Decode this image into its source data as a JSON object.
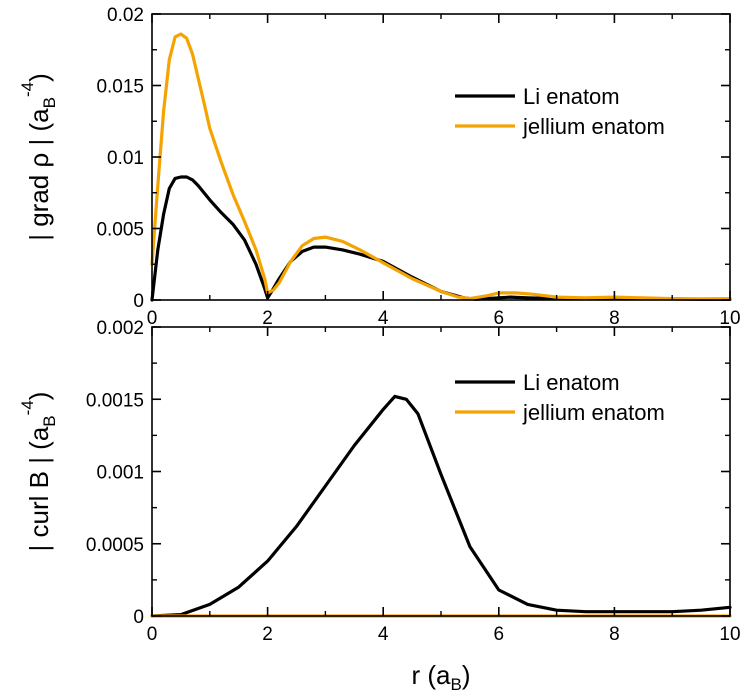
{
  "colors": {
    "li": "#000000",
    "jellium": "#f5a300",
    "axis": "#000000"
  },
  "x_label": {
    "prefix": "r (a",
    "sub": "B",
    "suffix": ")"
  },
  "chart_data": [
    {
      "type": "line",
      "ylabel": {
        "prefix": "| grad ρ | (a",
        "sub": "B",
        "sup": "-4",
        "suffix": ")"
      },
      "xlim": [
        0,
        10
      ],
      "ylim": [
        0,
        0.02
      ],
      "xticks": [
        0,
        2,
        4,
        6,
        8,
        10
      ],
      "xtick_labels": [
        "0",
        "2",
        "4",
        "6",
        "8",
        "10"
      ],
      "yticks": [
        0,
        0.005,
        0.01,
        0.015,
        0.02
      ],
      "ytick_labels": [
        "0",
        "0.005",
        "0.01",
        "0.015",
        "0.02"
      ],
      "legend": {
        "position": "top-right"
      },
      "series": [
        {
          "name": "Li enatom",
          "color_key": "li",
          "x": [
            0,
            0.1,
            0.2,
            0.3,
            0.4,
            0.5,
            0.6,
            0.7,
            0.8,
            0.9,
            1.0,
            1.2,
            1.4,
            1.6,
            1.8,
            1.95,
            2.0,
            2.1,
            2.2,
            2.4,
            2.6,
            2.8,
            3.0,
            3.3,
            3.6,
            4.0,
            4.5,
            5.0,
            5.4,
            5.6,
            5.8,
            6.0,
            6.2,
            6.5,
            7.0,
            7.5,
            8.0,
            8.5,
            9.0,
            9.5,
            10.0
          ],
          "y": [
            0.0,
            0.0035,
            0.006,
            0.0078,
            0.0085,
            0.0086,
            0.0086,
            0.0084,
            0.008,
            0.0075,
            0.007,
            0.0061,
            0.0053,
            0.0042,
            0.0025,
            0.0008,
            0.00015,
            0.0008,
            0.0015,
            0.0027,
            0.0034,
            0.0037,
            0.0037,
            0.0035,
            0.0032,
            0.0027,
            0.0016,
            0.0006,
            0.00015,
            5e-05,
            0.0001,
            0.00015,
            0.0002,
            0.00015,
            0.0001,
            0.0001,
            0.00015,
            0.0001,
            8e-05,
            5e-05,
            5e-05
          ]
        },
        {
          "name": "jellium enatom",
          "color_key": "jellium",
          "x": [
            0,
            0.1,
            0.2,
            0.3,
            0.4,
            0.5,
            0.6,
            0.7,
            0.8,
            0.9,
            1.0,
            1.2,
            1.4,
            1.6,
            1.8,
            1.95,
            2.0,
            2.1,
            2.2,
            2.4,
            2.6,
            2.8,
            3.0,
            3.3,
            3.6,
            4.0,
            4.5,
            5.0,
            5.3,
            5.5,
            5.8,
            6.0,
            6.3,
            6.6,
            7.0,
            7.5,
            8.0,
            8.5,
            9.0,
            9.5,
            10.0
          ],
          "y": [
            0.0025,
            0.008,
            0.0132,
            0.0168,
            0.0184,
            0.0186,
            0.0183,
            0.0172,
            0.0155,
            0.0138,
            0.012,
            0.0096,
            0.0074,
            0.0055,
            0.0035,
            0.0015,
            0.0005,
            0.0007,
            0.0012,
            0.0027,
            0.0038,
            0.0043,
            0.0044,
            0.0041,
            0.0035,
            0.0026,
            0.0015,
            0.0006,
            0.0002,
            0.0001,
            0.0003,
            0.0005,
            0.0005,
            0.0004,
            0.0002,
            0.00015,
            0.0002,
            0.00015,
            0.0001,
            8e-05,
            0.0001
          ]
        }
      ]
    },
    {
      "type": "line",
      "ylabel": {
        "prefix": "| curl B | (a",
        "sub": "B",
        "sup": "-4",
        "suffix": ")"
      },
      "xlim": [
        0,
        10
      ],
      "ylim": [
        0,
        0.002
      ],
      "xticks": [
        0,
        2,
        4,
        6,
        8,
        10
      ],
      "xtick_labels": [
        "0",
        "2",
        "4",
        "6",
        "8",
        "10"
      ],
      "yticks": [
        0,
        0.0005,
        0.001,
        0.0015,
        0.002
      ],
      "ytick_labels": [
        "0",
        "0.0005",
        "0.001",
        "0.0015",
        "0.002"
      ],
      "legend": {
        "position": "top-right"
      },
      "series": [
        {
          "name": "Li enatom",
          "color_key": "li",
          "x": [
            0,
            0.5,
            1.0,
            1.5,
            2.0,
            2.5,
            3.0,
            3.5,
            4.0,
            4.2,
            4.4,
            4.6,
            5.0,
            5.5,
            6.0,
            6.5,
            7.0,
            7.5,
            8.0,
            8.5,
            9.0,
            9.5,
            10.0
          ],
          "y": [
            0.0,
            1e-05,
            8e-05,
            0.0002,
            0.00038,
            0.00062,
            0.0009,
            0.00118,
            0.00143,
            0.00152,
            0.0015,
            0.0014,
            0.00098,
            0.00048,
            0.00018,
            8e-05,
            4e-05,
            3e-05,
            3e-05,
            3e-05,
            3e-05,
            4e-05,
            6e-05
          ]
        },
        {
          "name": "jellium enatom",
          "color_key": "jellium",
          "x": [
            0,
            10
          ],
          "y": [
            0.0,
            0.0
          ]
        }
      ]
    }
  ]
}
